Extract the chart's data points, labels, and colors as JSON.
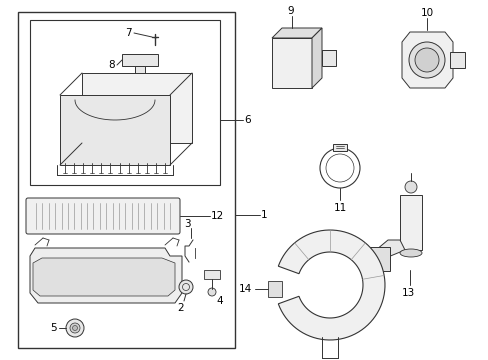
{
  "bg_color": "#ffffff",
  "line_color": "#333333",
  "parts": [
    "1",
    "2",
    "3",
    "4",
    "5",
    "6",
    "7",
    "8",
    "9",
    "10",
    "11",
    "12",
    "13",
    "14"
  ]
}
